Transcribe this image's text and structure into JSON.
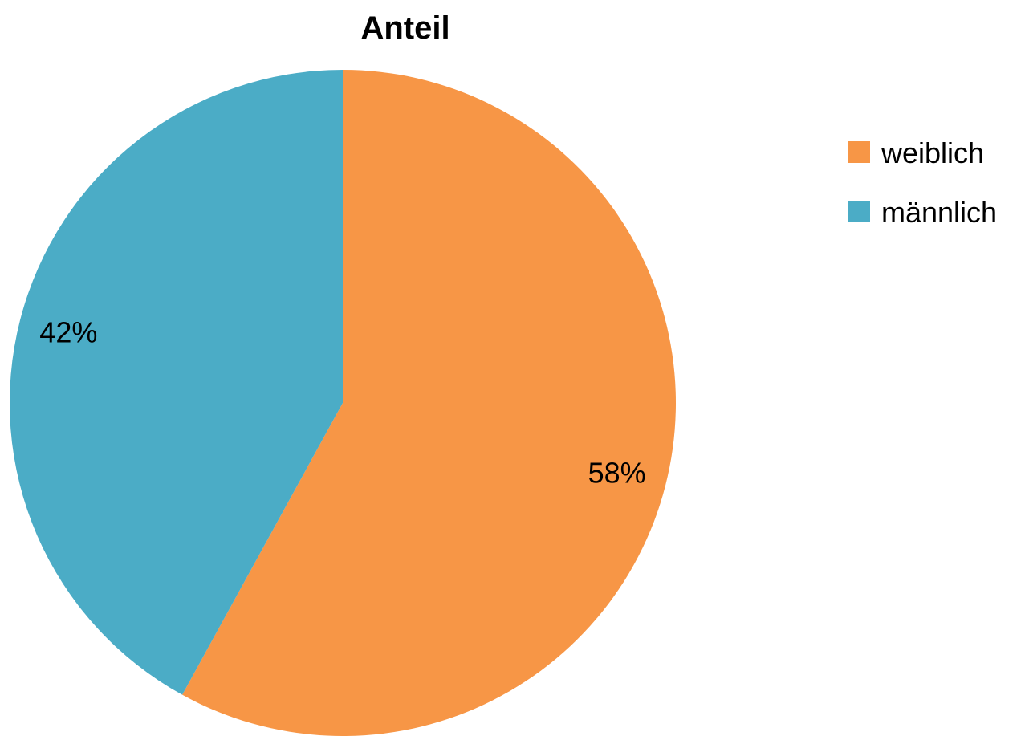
{
  "chart_data": {
    "type": "pie",
    "title": "Anteil",
    "categories": [
      "weiblich",
      "männlich"
    ],
    "values": [
      58,
      42
    ],
    "unit": "%",
    "data_labels": [
      "58%",
      "42%"
    ],
    "colors": [
      "#F79646",
      "#4BACC6"
    ],
    "start_angle": "12 o'clock, clockwise",
    "legend": {
      "position": "right",
      "entries": [
        "weiblich",
        "männlich"
      ]
    }
  }
}
